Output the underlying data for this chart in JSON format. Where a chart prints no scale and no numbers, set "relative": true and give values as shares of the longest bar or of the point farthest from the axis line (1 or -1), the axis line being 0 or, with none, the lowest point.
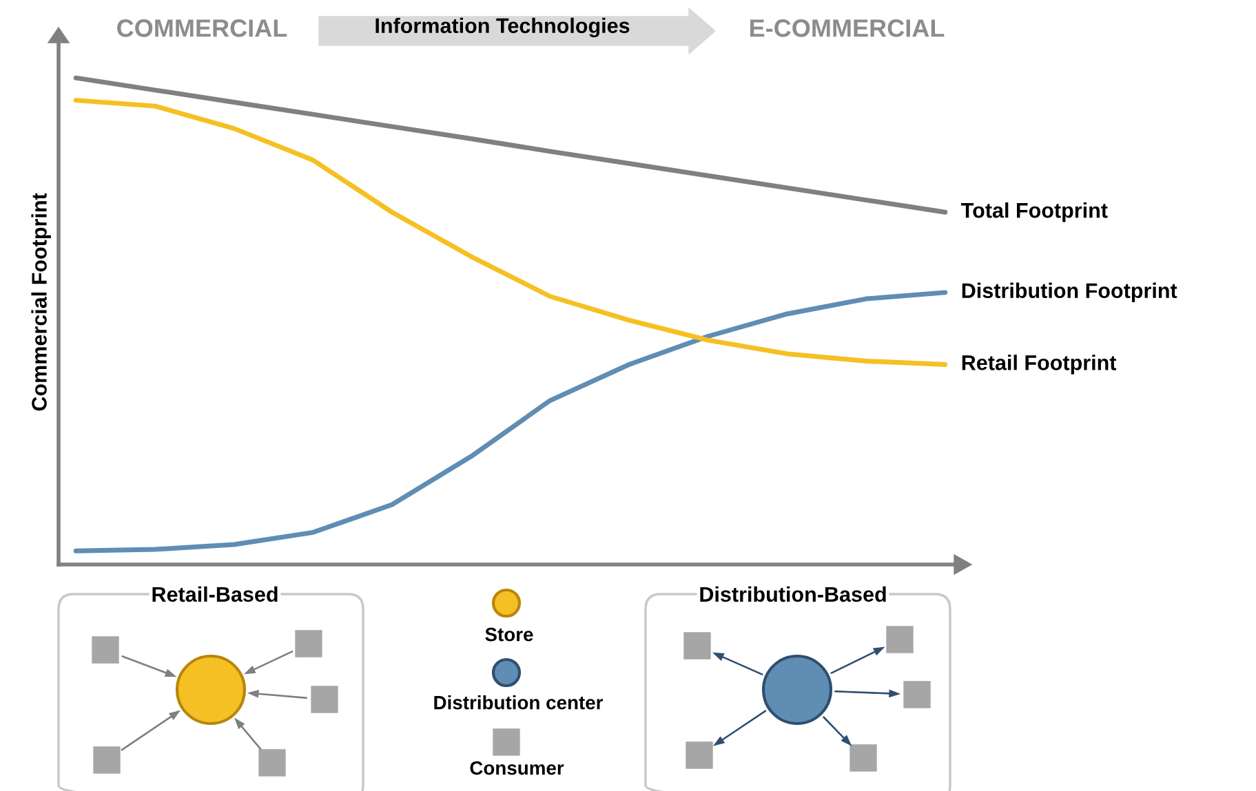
{
  "chart_data": {
    "type": "line",
    "relative": true,
    "ylabel": "Commercial Footprint",
    "legend": false,
    "categories": [
      null,
      null,
      null,
      null,
      null,
      null,
      null,
      null,
      null,
      null,
      null,
      null
    ],
    "series": [
      {
        "name": "Total Footprint",
        "color": "#808080",
        "values": [
          1.0,
          0.975,
          0.95,
          0.925,
          0.9,
          0.875,
          0.849,
          0.824,
          0.799,
          0.774,
          0.749,
          0.724
        ]
      },
      {
        "name": "Distribution Footprint",
        "color": "#5f8db4",
        "values": [
          0.028,
          0.031,
          0.041,
          0.066,
          0.123,
          0.222,
          0.337,
          0.411,
          0.469,
          0.515,
          0.546,
          0.559
        ]
      },
      {
        "name": "Retail Footprint",
        "color": "#f5c023",
        "values": [
          0.954,
          0.942,
          0.896,
          0.831,
          0.724,
          0.633,
          0.551,
          0.502,
          0.461,
          0.433,
          0.418,
          0.411
        ]
      }
    ],
    "annotations": [
      "COMMERCIAL",
      "Information Technologies",
      "E-COMMERCIAL",
      "Retail-Based",
      "Distribution-Based",
      "Store",
      "Distribution center",
      "Consumer"
    ]
  }
}
